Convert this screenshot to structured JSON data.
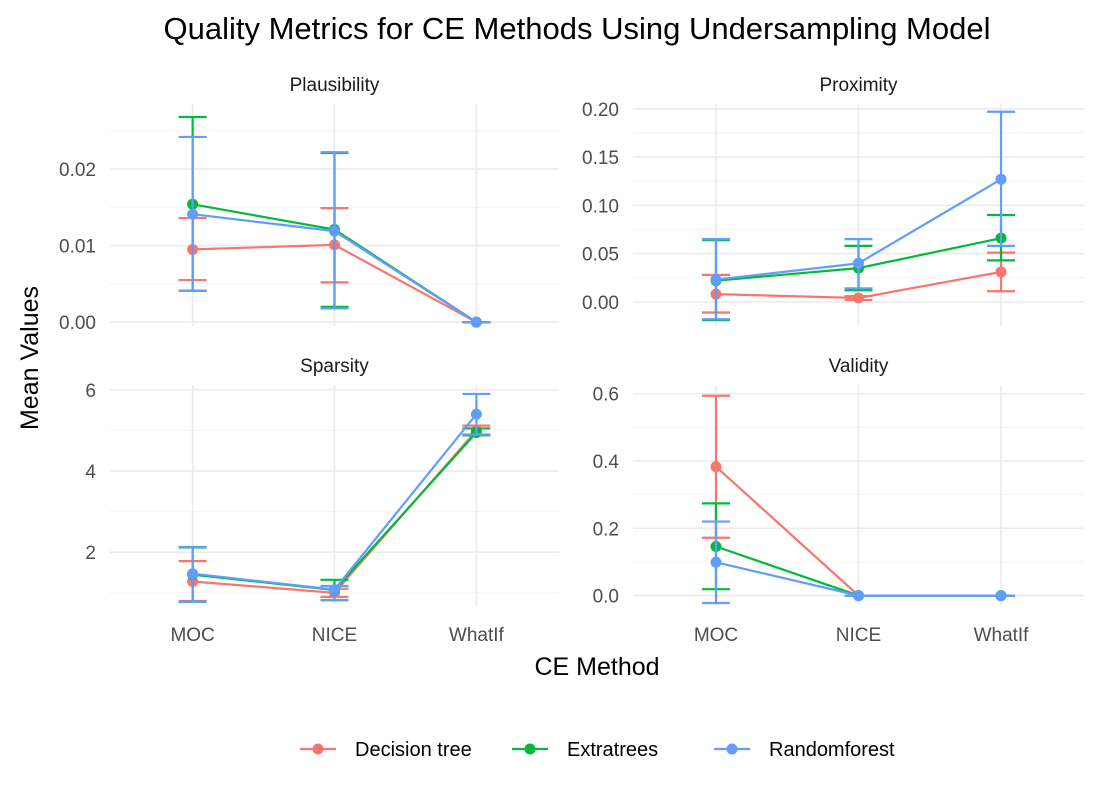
{
  "chart_data": {
    "type": "line",
    "title": "Quality Metrics for CE Methods Using Undersampling Model",
    "xlabel": "CE Method",
    "ylabel": "Mean Values",
    "categories": [
      "MOC",
      "NICE",
      "WhatIf"
    ],
    "legend": {
      "position": "bottom",
      "entries": [
        "Decision tree",
        "Extratrees",
        "Randomforest"
      ]
    },
    "colors": {
      "Decision tree": "#F8766D",
      "Extratrees": "#00BA38",
      "Randomforest": "#619CFF"
    },
    "grid": true,
    "panels": [
      {
        "name": "Plausibility",
        "ylim": [
          -0.0005,
          0.0285
        ],
        "yticks": [
          0,
          0.01,
          0.02
        ],
        "ytick_labels": [
          "0.00",
          "0.01",
          "0.02"
        ],
        "series": [
          {
            "name": "Decision tree",
            "values": [
              0.0095,
              0.0101,
              0.0
            ],
            "lower": [
              0.0055,
              0.0052,
              0.0
            ],
            "upper": [
              0.0136,
              0.0149,
              0.0
            ]
          },
          {
            "name": "Extratrees",
            "values": [
              0.0154,
              0.0121,
              0.0
            ],
            "lower": [
              0.0041,
              0.002,
              0.0
            ],
            "upper": [
              0.0268,
              0.0221,
              0.0
            ]
          },
          {
            "name": "Randomforest",
            "values": [
              0.0141,
              0.0119,
              0.0
            ],
            "lower": [
              0.0041,
              0.0018,
              0.0
            ],
            "upper": [
              0.0242,
              0.0222,
              0.0
            ]
          }
        ]
      },
      {
        "name": "Proximity",
        "ylim": [
          -0.025,
          0.205
        ],
        "yticks": [
          0,
          0.05,
          0.1,
          0.15,
          0.2
        ],
        "ytick_labels": [
          "0.00",
          "0.05",
          "0.10",
          "0.15",
          "0.20"
        ],
        "series": [
          {
            "name": "Decision tree",
            "values": [
              0.008,
              0.004,
              0.031
            ],
            "lower": [
              -0.011,
              0.002,
              0.011
            ],
            "upper": [
              0.028,
              0.006,
              0.051
            ]
          },
          {
            "name": "Extratrees",
            "values": [
              0.022,
              0.035,
              0.066
            ],
            "lower": [
              -0.019,
              0.012,
              0.043
            ],
            "upper": [
              0.064,
              0.058,
              0.09
            ]
          },
          {
            "name": "Randomforest",
            "values": [
              0.023,
              0.04,
              0.127
            ],
            "lower": [
              -0.018,
              0.014,
              0.058
            ],
            "upper": [
              0.065,
              0.065,
              0.197
            ]
          }
        ]
      },
      {
        "name": "Sparsity",
        "ylim": [
          0.7,
          6.12
        ],
        "yticks": [
          2,
          4,
          6
        ],
        "ytick_labels": [
          "2",
          "4",
          "6"
        ],
        "series": [
          {
            "name": "Decision tree",
            "values": [
              1.28,
              1.0,
              5.0
            ],
            "lower": [
              0.8,
              0.9,
              4.88
            ],
            "upper": [
              1.78,
              1.1,
              5.12
            ]
          },
          {
            "name": "Extratrees",
            "values": [
              1.45,
              1.07,
              4.95
            ],
            "lower": [
              0.78,
              0.82,
              4.88
            ],
            "upper": [
              2.12,
              1.32,
              5.05
            ]
          },
          {
            "name": "Randomforest",
            "values": [
              1.47,
              1.08,
              5.4
            ],
            "lower": [
              0.78,
              0.82,
              4.9
            ],
            "upper": [
              2.13,
              1.17,
              5.9
            ]
          }
        ]
      },
      {
        "name": "Validity",
        "ylim": [
          -0.028,
          0.626
        ],
        "yticks": [
          0,
          0.2,
          0.4,
          0.6
        ],
        "ytick_labels": [
          "0.0",
          "0.2",
          "0.4",
          "0.6"
        ],
        "series": [
          {
            "name": "Decision tree",
            "values": [
              0.383,
              0.0,
              0.0
            ],
            "lower": [
              0.172,
              0.0,
              0.0
            ],
            "upper": [
              0.594,
              0.0,
              0.0
            ]
          },
          {
            "name": "Extratrees",
            "values": [
              0.146,
              0.0,
              0.0
            ],
            "lower": [
              0.019,
              0.0,
              0.0
            ],
            "upper": [
              0.274,
              0.0,
              0.0
            ]
          },
          {
            "name": "Randomforest",
            "values": [
              0.099,
              0.0,
              0.0
            ],
            "lower": [
              -0.022,
              0.0,
              0.0
            ],
            "upper": [
              0.22,
              0.0,
              0.0
            ]
          }
        ]
      }
    ]
  }
}
